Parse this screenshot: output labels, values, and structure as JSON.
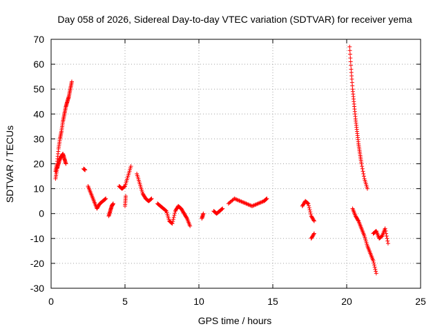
{
  "chart_data": {
    "type": "scatter",
    "title": "Day 058 of 2026, Sidereal Day-to-day VTEC variation (SDTVAR) for receiver yema",
    "xlabel": "GPS time / hours",
    "ylabel": "SDTVAR / TECUs",
    "xlim": [
      0,
      25
    ],
    "ylim": [
      -30,
      70
    ],
    "xticks": [
      0,
      5,
      10,
      15,
      20,
      25
    ],
    "yticks": [
      -30,
      -20,
      -10,
      0,
      10,
      20,
      30,
      40,
      50,
      60,
      70
    ],
    "grid": true,
    "marker": "+",
    "color": "#ff0000",
    "series": [
      {
        "name": "SDTVAR",
        "segments": [
          {
            "x": [
              0.3,
              0.4,
              0.5,
              0.6,
              0.7,
              0.8,
              0.9,
              1.0,
              1.1,
              1.2,
              1.3,
              1.4
            ],
            "y": [
              17,
              20,
              26,
              30,
              33,
              37,
              40,
              43,
              45,
              47,
              50,
              53
            ]
          },
          {
            "x": [
              0.3,
              0.4,
              0.5,
              0.6,
              0.7,
              0.8,
              0.9,
              1.0
            ],
            "y": [
              14,
              18,
              20,
              22,
              23,
              24,
              22,
              20
            ]
          },
          {
            "x": [
              2.2,
              2.3
            ],
            "y": [
              18,
              17.5
            ]
          },
          {
            "x": [
              2.5,
              2.7,
              2.9,
              3.1,
              3.3,
              3.5,
              3.7
            ],
            "y": [
              11,
              8,
              5,
              2,
              4,
              5,
              6
            ]
          },
          {
            "x": [
              3.9,
              4.0,
              4.1,
              4.2
            ],
            "y": [
              -1,
              1,
              3,
              4
            ]
          },
          {
            "x": [
              4.6,
              4.8,
              5.0,
              5.2,
              5.4
            ],
            "y": [
              11,
              10,
              11,
              15,
              19
            ]
          },
          {
            "x": [
              5.0,
              5.05
            ],
            "y": [
              3,
              7
            ]
          },
          {
            "x": [
              5.8,
              6.0,
              6.2,
              6.4,
              6.6,
              6.8
            ],
            "y": [
              16,
              12,
              8,
              6,
              5,
              6
            ]
          },
          {
            "x": [
              7.2,
              7.4,
              7.6,
              7.8,
              8.0,
              8.2,
              8.4,
              8.6,
              8.8,
              9.0,
              9.2,
              9.4
            ],
            "y": [
              4,
              3,
              2,
              1,
              -3,
              -4,
              1,
              3,
              2,
              0,
              -2,
              -5
            ]
          },
          {
            "x": [
              10.2,
              10.3
            ],
            "y": [
              -2,
              0
            ]
          },
          {
            "x": [
              11.0,
              11.2,
              11.4,
              11.6
            ],
            "y": [
              1,
              0,
              1,
              2
            ]
          },
          {
            "x": [
              12.0,
              12.4,
              12.8,
              13.2,
              13.6,
              14.0,
              14.4,
              14.6
            ],
            "y": [
              4,
              6,
              5,
              4,
              3,
              4,
              5,
              6
            ]
          },
          {
            "x": [
              17.0,
              17.2,
              17.4,
              17.6,
              17.8
            ],
            "y": [
              3,
              5,
              4,
              -1,
              -3
            ]
          },
          {
            "x": [
              17.6,
              17.8
            ],
            "y": [
              -10,
              -8
            ]
          },
          {
            "x": [
              20.2,
              20.3,
              20.4,
              20.5,
              20.6,
              20.7,
              20.8,
              20.9,
              21.0,
              21.2,
              21.4
            ],
            "y": [
              67,
              58,
              50,
              44,
              38,
              33,
              28,
              24,
              20,
              14,
              10
            ]
          },
          {
            "x": [
              20.4,
              20.6,
              20.8,
              21.0,
              21.2,
              21.4,
              21.6,
              21.8,
              22.0
            ],
            "y": [
              2,
              -1,
              -3,
              -6,
              -9,
              -13,
              -16,
              -19,
              -24
            ]
          },
          {
            "x": [
              21.8,
              22.0,
              22.2,
              22.4,
              22.6,
              22.8
            ],
            "y": [
              -8,
              -7,
              -10,
              -9,
              -6,
              -12
            ]
          }
        ]
      }
    ]
  }
}
